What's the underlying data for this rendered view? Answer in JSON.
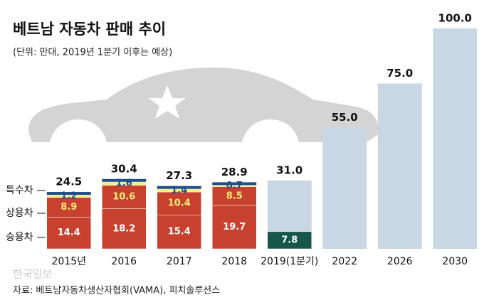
{
  "chart_data": {
    "type": "stacked_bar",
    "title": "베트남 자동차 판매 추이",
    "subtitle": "(단위: 만대, 2019년 1분기 이후는 예상)",
    "source": "자료: 베트남자동차생산자협회(VAMA), 피치솔루션스",
    "watermark": "한국일보",
    "categories": [
      "2015년",
      "2016",
      "2017",
      "2018",
      "2019(1분기)",
      "2022",
      "2026",
      "2030"
    ],
    "series": [
      {
        "name": "승용차",
        "color": "#c8412f",
        "label_color": "#ffffff",
        "values": [
          14.4,
          18.2,
          15.4,
          19.7,
          null,
          null,
          null,
          null
        ]
      },
      {
        "name": "상용차",
        "color": "#c8412f",
        "label_color": "#f7ec7a",
        "values": [
          8.9,
          10.6,
          10.4,
          8.5,
          null,
          null,
          null,
          null
        ]
      },
      {
        "name": "특수차",
        "color": "#f7ef86",
        "label_color": "#1f4e8c",
        "values": [
          1.2,
          1.6,
          1.4,
          0.7,
          null,
          null,
          null,
          null
        ]
      },
      {
        "color": "#17574a",
        "label_color": "#ffffff",
        "values": [
          null,
          null,
          null,
          null,
          7.8,
          null,
          null,
          null
        ]
      }
    ],
    "totals": {
      "color": "#c9d6e3",
      "cap_color": "#1f4e8c",
      "values": [
        24.5,
        30.4,
        27.3,
        28.9,
        31,
        55,
        75,
        100
      ],
      "value_labels": [
        "24.5",
        "30.4",
        "27.3",
        "28.9",
        "31.0",
        "55.0",
        "75.0",
        "100.0"
      ]
    },
    "ylim": [
      0,
      100
    ]
  }
}
